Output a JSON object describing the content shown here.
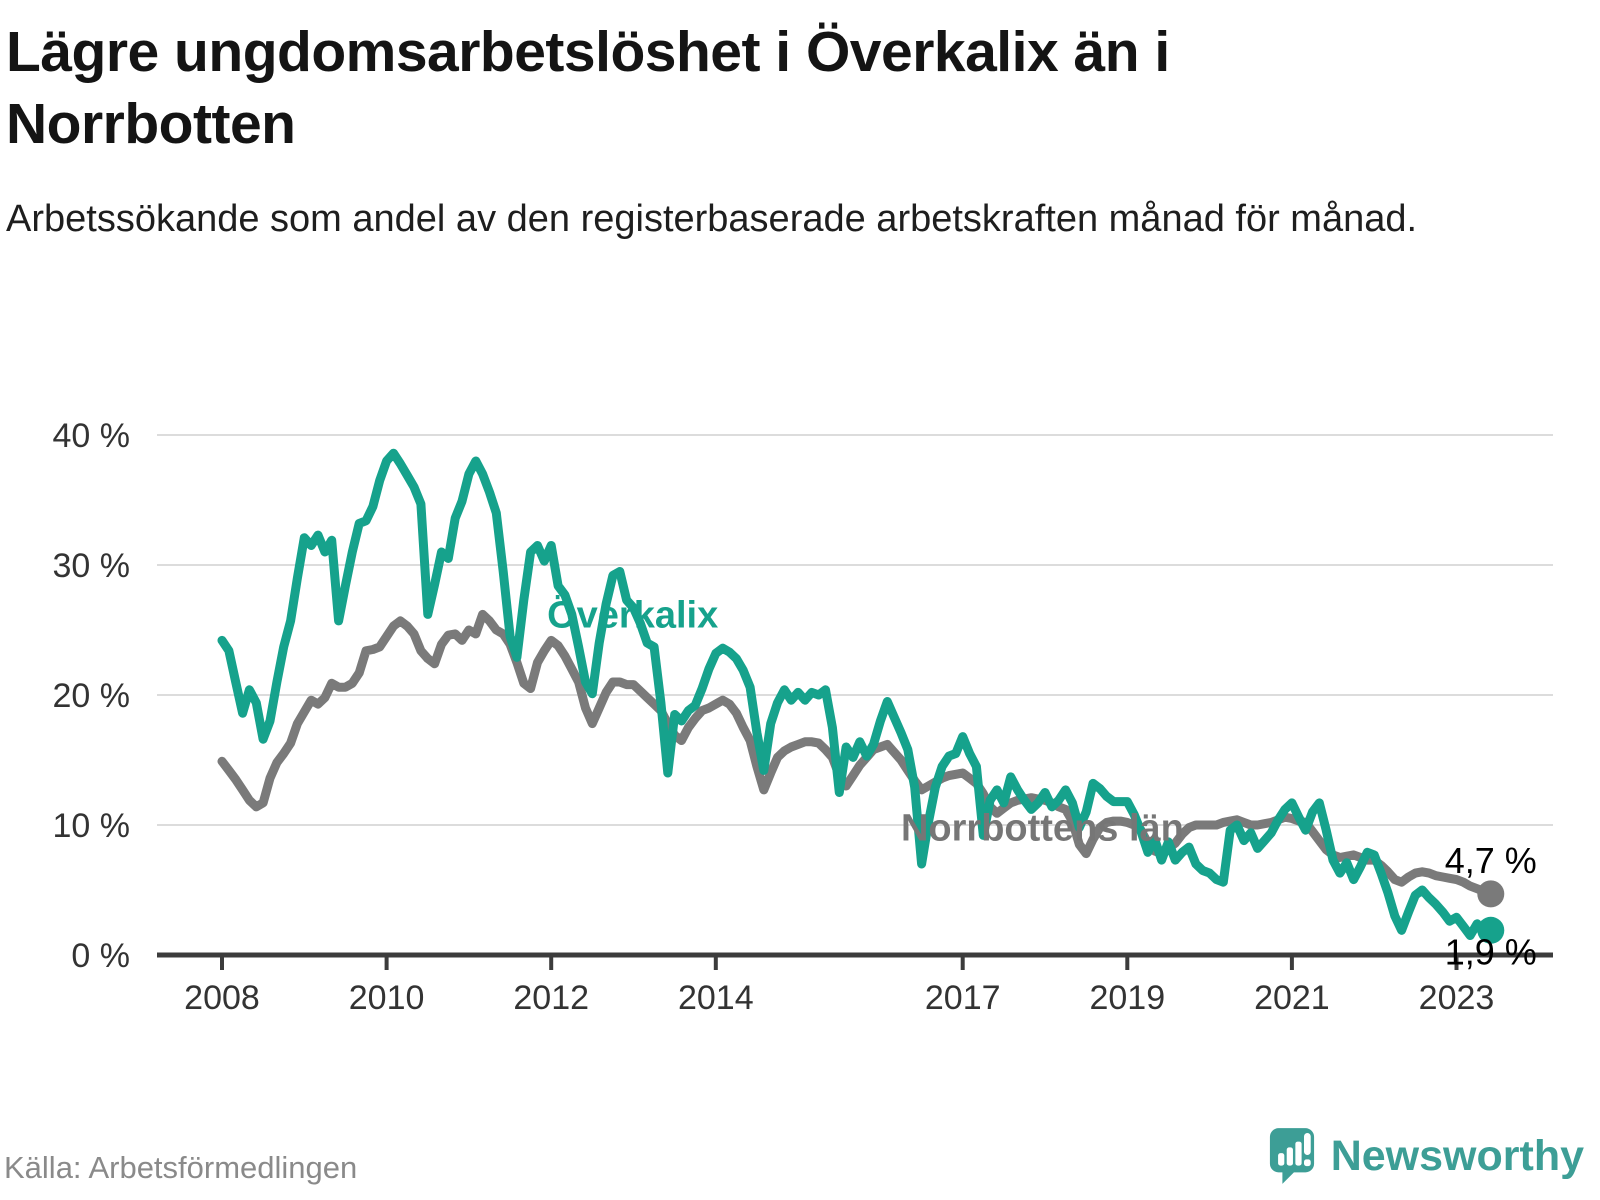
{
  "header": {
    "title_line1": "Lägre ungdomsarbetslöshet i Överkalix än i",
    "title_line2": "Norrbotten",
    "subtitle": "Arbetssökande som andel av den registerbaserade arbetskraften månad för månad."
  },
  "footer": {
    "source": "Källa: Arbetsförmedlingen",
    "brand": "Newsworthy"
  },
  "colors": {
    "overkalix": "#16a28c",
    "norrbotten": "#7a7a7a",
    "norrbotten_label": "#767676",
    "grid": "#dcdcdc",
    "axis": "#3c3c3c",
    "tick_text": "#333333",
    "end_label": "#000000",
    "brand_teal": "#3d9e96"
  },
  "chart_data": {
    "type": "line",
    "title": "Lägre ungdomsarbetslöshet i Överkalix än i Norrbotten",
    "subtitle": "Arbetssökande som andel av den registerbaserade arbetskraften månad för månad.",
    "xlabel": "",
    "ylabel": "",
    "ylim": [
      0,
      42
    ],
    "grid": "horizontal",
    "legend_position": "inline-labels",
    "x_unit": "month",
    "x_start_year": 2008,
    "x_range": [
      "2008-01",
      "2023-06"
    ],
    "y_axis": {
      "ticks": [
        {
          "value": 0,
          "label": "0 %"
        },
        {
          "value": 10,
          "label": "10 %"
        },
        {
          "value": 20,
          "label": "20 %"
        },
        {
          "value": 30,
          "label": "30 %"
        },
        {
          "value": 40,
          "label": "40 %"
        }
      ]
    },
    "x_axis": {
      "ticks": [
        {
          "year": 2008,
          "label": "2008"
        },
        {
          "year": 2010,
          "label": "2010"
        },
        {
          "year": 2012,
          "label": "2012"
        },
        {
          "year": 2014,
          "label": "2014"
        },
        {
          "year": 2017,
          "label": "2017"
        },
        {
          "year": 2019,
          "label": "2019"
        },
        {
          "year": 2021,
          "label": "2021"
        },
        {
          "year": 2023,
          "label": "2023"
        }
      ]
    },
    "series": [
      {
        "name": "Norrbottens län",
        "color": "#7a7a7a",
        "label_color": "#767676",
        "label_anchor": {
          "year": 2016.25,
          "value": 8.8
        },
        "end_label": "4,7 %",
        "end_label_position": "above",
        "end_value": 4.7,
        "values": [
          14.9,
          14.2,
          13.5,
          12.7,
          11.9,
          11.4,
          11.7,
          13.6,
          14.8,
          15.5,
          16.3,
          17.8,
          18.7,
          19.6,
          19.3,
          19.8,
          20.9,
          20.6,
          20.6,
          20.9,
          21.7,
          23.4,
          23.5,
          23.7,
          24.5,
          25.3,
          25.7,
          25.3,
          24.7,
          23.4,
          22.8,
          22.4,
          23.9,
          24.6,
          24.7,
          24.2,
          25.0,
          24.7,
          26.2,
          25.7,
          25.0,
          24.7,
          23.9,
          22.5,
          20.9,
          20.5,
          22.5,
          23.4,
          24.2,
          23.8,
          23.0,
          22.0,
          21.0,
          19.0,
          17.8,
          19.0,
          20.2,
          21.0,
          21.0,
          20.8,
          20.8,
          20.3,
          19.8,
          19.3,
          18.8,
          17.8,
          16.9,
          16.5,
          17.5,
          18.2,
          18.8,
          19.0,
          19.3,
          19.6,
          19.3,
          18.6,
          17.5,
          16.5,
          14.5,
          12.7,
          14.0,
          15.2,
          15.7,
          16.0,
          16.2,
          16.4,
          16.4,
          16.3,
          15.8,
          15.2,
          13.8,
          13.0,
          13.8,
          14.6,
          15.2,
          15.8,
          16.0,
          16.2,
          15.6,
          15.0,
          14.2,
          13.4,
          12.7,
          13.0,
          13.3,
          13.6,
          13.8,
          13.9,
          14.0,
          13.6,
          13.2,
          12.4,
          11.4,
          10.9,
          11.3,
          11.7,
          11.9,
          12.0,
          12.1,
          12.0,
          11.9,
          11.7,
          11.4,
          11.2,
          10.3,
          8.5,
          7.8,
          8.9,
          9.8,
          10.2,
          10.3,
          10.3,
          10.2,
          10.0,
          9.6,
          8.6,
          8.0,
          7.8,
          8.2,
          8.6,
          9.3,
          9.8,
          10.0,
          10.0,
          10.0,
          10.0,
          10.2,
          10.3,
          10.4,
          10.2,
          10.0,
          10.0,
          10.1,
          10.2,
          10.4,
          10.6,
          10.5,
          10.3,
          10.2,
          9.5,
          8.8,
          8.1,
          7.7,
          7.5,
          7.6,
          7.7,
          7.5,
          7.3,
          7.3,
          6.9,
          6.4,
          5.8,
          5.6,
          6.0,
          6.3,
          6.4,
          6.3,
          6.1,
          6.0,
          5.9,
          5.8,
          5.6,
          5.3,
          5.1,
          4.9,
          4.7
        ]
      },
      {
        "name": "Överkalix",
        "color": "#16a28c",
        "label_color": "#16a28c",
        "label_anchor": {
          "year": 2011.95,
          "value": 25.2
        },
        "end_label": "1,9 %",
        "end_label_position": "below",
        "end_value": 1.9,
        "values": [
          24.2,
          23.4,
          21.0,
          18.6,
          20.4,
          19.4,
          16.6,
          18.0,
          21.0,
          23.7,
          25.7,
          29.0,
          32.1,
          31.5,
          32.3,
          31.0,
          31.9,
          25.7,
          28.4,
          31.0,
          33.2,
          33.4,
          34.5,
          36.5,
          38.0,
          38.6,
          37.8,
          36.9,
          36.0,
          34.7,
          26.2,
          28.5,
          31.0,
          30.5,
          33.6,
          34.9,
          37.0,
          38.0,
          37.0,
          35.6,
          34.0,
          29.5,
          24.5,
          22.9,
          27.3,
          31.0,
          31.5,
          30.3,
          31.5,
          28.4,
          27.7,
          26.2,
          23.7,
          21.0,
          20.1,
          24.0,
          27.0,
          29.2,
          29.5,
          27.3,
          26.7,
          25.5,
          24.0,
          23.7,
          19.4,
          14.0,
          18.5,
          18.0,
          18.8,
          19.2,
          20.5,
          22.0,
          23.2,
          23.6,
          23.3,
          22.8,
          21.9,
          20.6,
          17.1,
          14.2,
          17.8,
          19.4,
          20.4,
          19.6,
          20.2,
          19.6,
          20.2,
          20.0,
          20.4,
          17.5,
          12.5,
          16.0,
          15.2,
          16.4,
          15.3,
          16.2,
          18.0,
          19.5,
          18.3,
          17.1,
          15.8,
          12.9,
          7.0,
          10.2,
          12.9,
          14.5,
          15.3,
          15.5,
          16.8,
          15.5,
          14.5,
          9.2,
          11.9,
          12.7,
          11.7,
          13.7,
          12.7,
          11.9,
          11.2,
          11.7,
          12.5,
          11.4,
          11.9,
          12.7,
          11.7,
          9.8,
          11.0,
          13.2,
          12.8,
          12.2,
          11.8,
          11.8,
          11.8,
          10.8,
          9.5,
          7.9,
          8.9,
          7.3,
          8.7,
          7.3,
          7.9,
          8.3,
          7.0,
          6.5,
          6.3,
          5.8,
          5.6,
          9.6,
          10.0,
          8.8,
          9.4,
          8.2,
          8.8,
          9.4,
          10.4,
          11.2,
          11.7,
          10.6,
          9.6,
          11.0,
          11.7,
          9.6,
          7.3,
          6.3,
          7.1,
          5.8,
          6.8,
          7.9,
          7.7,
          6.3,
          4.8,
          3.0,
          1.9,
          3.3,
          4.6,
          5.0,
          4.4,
          3.9,
          3.3,
          2.6,
          2.9,
          2.2,
          1.5,
          2.4,
          1.6,
          1.9
        ]
      }
    ]
  }
}
